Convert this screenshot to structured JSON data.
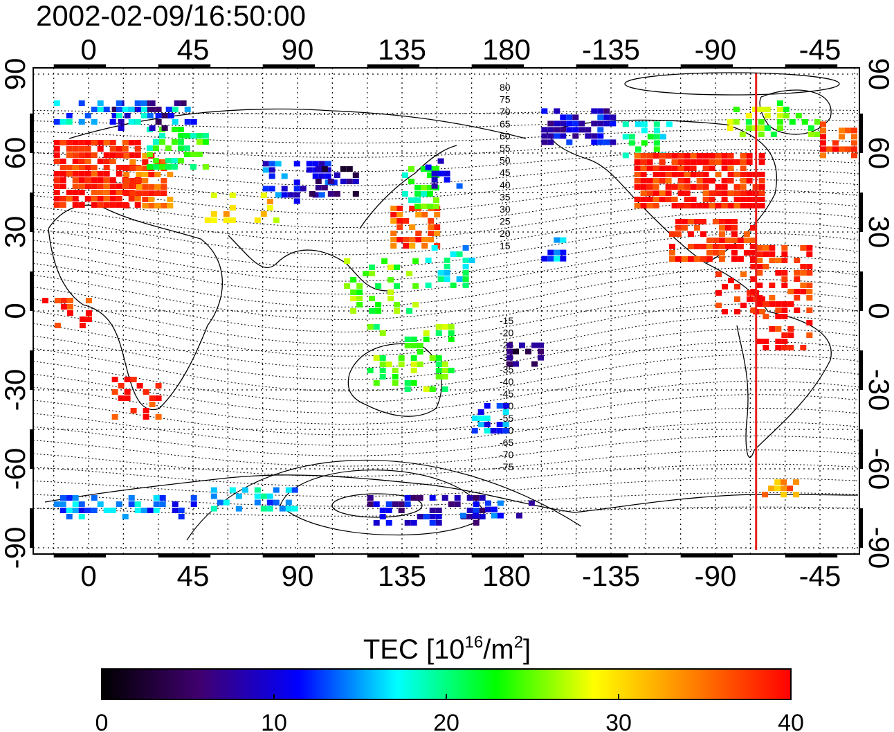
{
  "title": "2002-02-09/16:50:00",
  "map": {
    "top_lon_ticks": [
      "0",
      "45",
      "90",
      "135",
      "180",
      "-135",
      "-90",
      "-45"
    ],
    "bottom_lon_ticks": [
      "0",
      "45",
      "90",
      "135",
      "180",
      "-135",
      "-90",
      "-45"
    ],
    "left_lat_ticks": [
      "90",
      "60",
      "30",
      "0",
      "-30",
      "-60",
      "-90"
    ],
    "right_lat_ticks": [
      "90",
      "60",
      "30",
      "0",
      "-30",
      "-60",
      "-90"
    ],
    "contour_labels_north": [
      "80",
      "75",
      "70",
      "65",
      "60",
      "55",
      "50",
      "45",
      "40",
      "35",
      "30",
      "25",
      "20",
      "15"
    ],
    "contour_labels_south": [
      "-15",
      "-20",
      "-25",
      "-30",
      "-35",
      "-40",
      "-45",
      "-50",
      "-55",
      "-60",
      "-65",
      "-70",
      "-75"
    ],
    "terminator_longitude": -72.5,
    "terminator_color": "#e8211c"
  },
  "colorbar": {
    "label_prefix": "TEC  [10",
    "label_exp": "16",
    "label_mid": "/m",
    "label_exp2": "2",
    "label_suffix": "]",
    "ticks": [
      "0",
      "10",
      "20",
      "30",
      "40"
    ],
    "range": [
      0,
      40
    ],
    "stops": [
      "#000000",
      "#400070",
      "#0000ff",
      "#00ffff",
      "#00ff00",
      "#ffff00",
      "#ff8000",
      "#ff0000"
    ]
  }
}
